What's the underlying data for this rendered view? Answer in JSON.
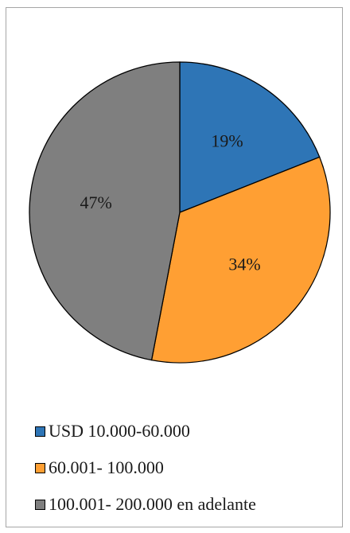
{
  "chart_data": {
    "type": "pie",
    "title": "",
    "categories": [
      "USD 10.000-60.000",
      "60.001- 100.000",
      "100.001- 200.000 en adelante"
    ],
    "values": [
      19,
      34,
      47
    ],
    "data_labels": [
      "19%",
      "34%",
      "47%"
    ],
    "colors": [
      "#2e75b6",
      "#ff9f33",
      "#7f7f7f"
    ],
    "start_angle_deg": 0,
    "direction": "clockwise",
    "legend_position": "bottom-left"
  }
}
